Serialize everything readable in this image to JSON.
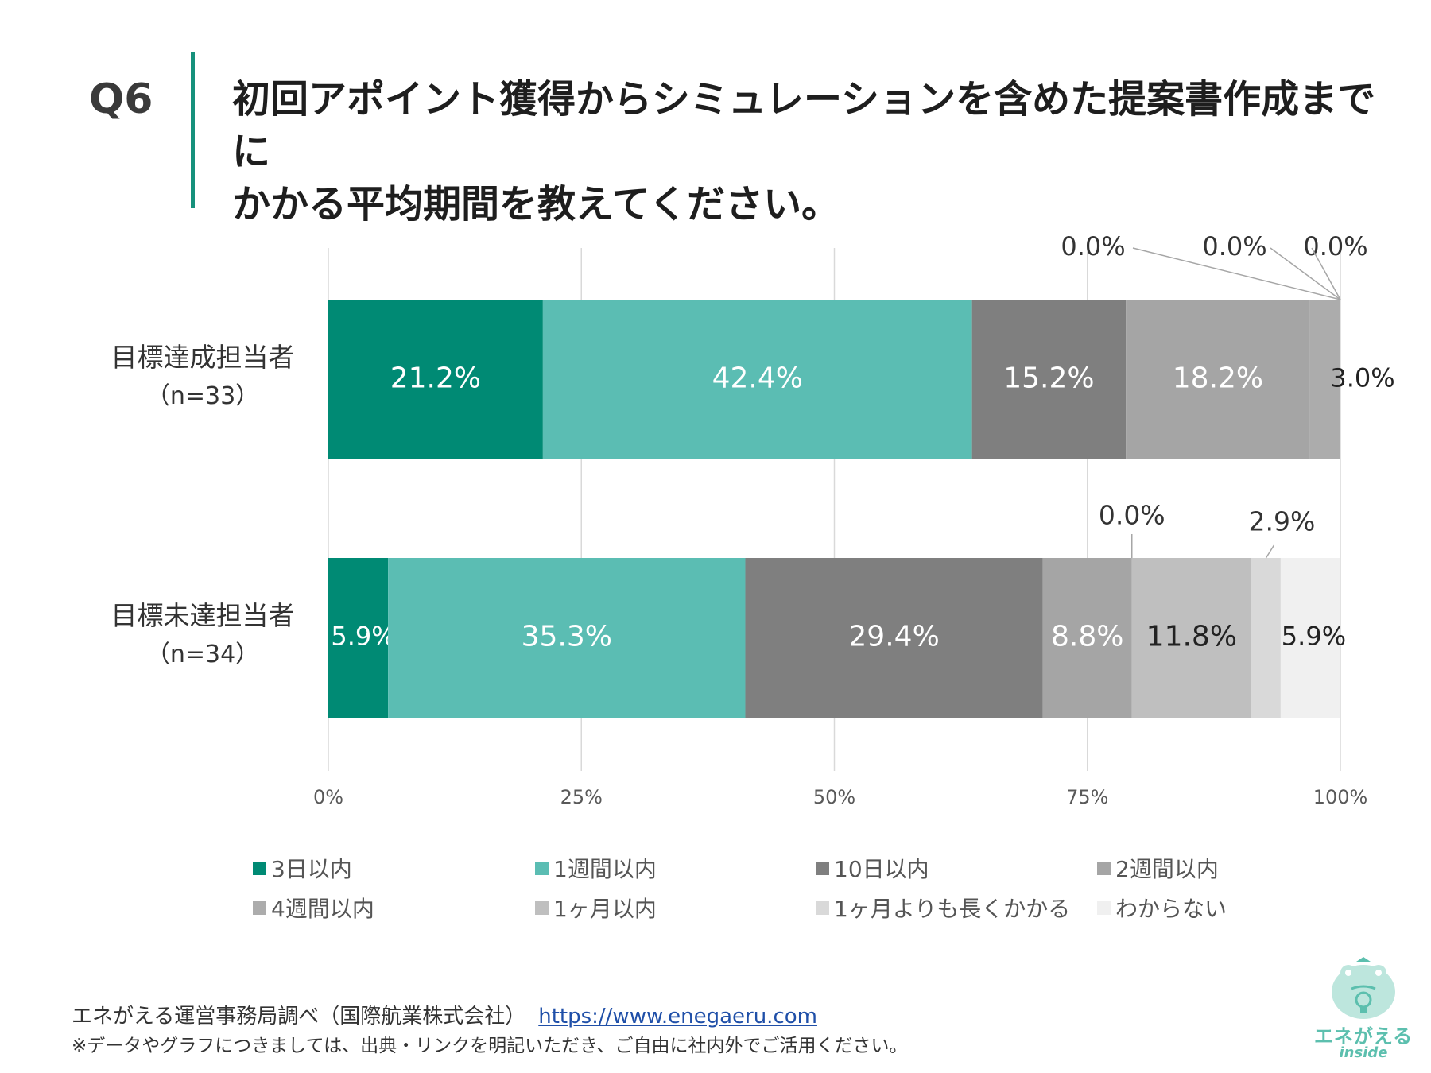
{
  "question": {
    "number": "Q6",
    "line1": "初回アポイント獲得からシミュレーションを含めた提案書作成までに",
    "line2": "かかる平均期間を教えてください。"
  },
  "chart_data": {
    "type": "bar",
    "orientation": "horizontal",
    "stacked": "percent",
    "categories": [
      {
        "name": "目標達成担当者",
        "n": "（n=33）"
      },
      {
        "name": "目標未達担当者",
        "n": "（n=34）"
      }
    ],
    "series": [
      {
        "name": "3日以内",
        "color": "#008a74",
        "values": [
          21.2,
          5.9
        ],
        "labels": [
          "21.2%",
          "5.9%"
        ]
      },
      {
        "name": "1週間以内",
        "color": "#5bbdb3",
        "values": [
          42.4,
          35.3
        ],
        "labels": [
          "42.4%",
          "35.3%"
        ]
      },
      {
        "name": "10日以内",
        "color": "#7f7f7f",
        "values": [
          15.2,
          29.4
        ],
        "labels": [
          "15.2%",
          "29.4%"
        ]
      },
      {
        "name": "2週間以内",
        "color": "#a5a5a5",
        "values": [
          18.2,
          8.8
        ],
        "labels": [
          "18.2%",
          "8.8%"
        ]
      },
      {
        "name": "4週間以内",
        "color": "#acacac",
        "values": [
          3.0,
          0.0
        ],
        "labels": [
          "3.0%",
          "0.0%"
        ]
      },
      {
        "name": "1ヶ月以内",
        "color": "#bfbfbf",
        "values": [
          0.0,
          11.8
        ],
        "labels": [
          "0.0%",
          "11.8%"
        ]
      },
      {
        "name": "1ヶ月よりも長くかかる",
        "color": "#d9d9d9",
        "values": [
          0.0,
          2.9
        ],
        "labels": [
          "0.0%",
          "2.9%"
        ]
      },
      {
        "name": "わからない",
        "color": "#f0f0f0",
        "values": [
          0.0,
          5.9
        ],
        "labels": [
          "0.0%",
          "5.9%"
        ]
      }
    ],
    "x_ticks": [
      "0%",
      "25%",
      "50%",
      "75%",
      "100%"
    ],
    "xlim": [
      0,
      100
    ],
    "legend_position": "bottom"
  },
  "source": {
    "text": "エネがえる運営事務局調べ（国際航業株式会社）",
    "url": "https://www.enegaeru.com"
  },
  "note": "※データやグラフにつきましては、出典・リンクを明記いただき、ご自由に社内外でご活用ください。",
  "logo": {
    "name": "エネがえる",
    "sub": "inside"
  }
}
